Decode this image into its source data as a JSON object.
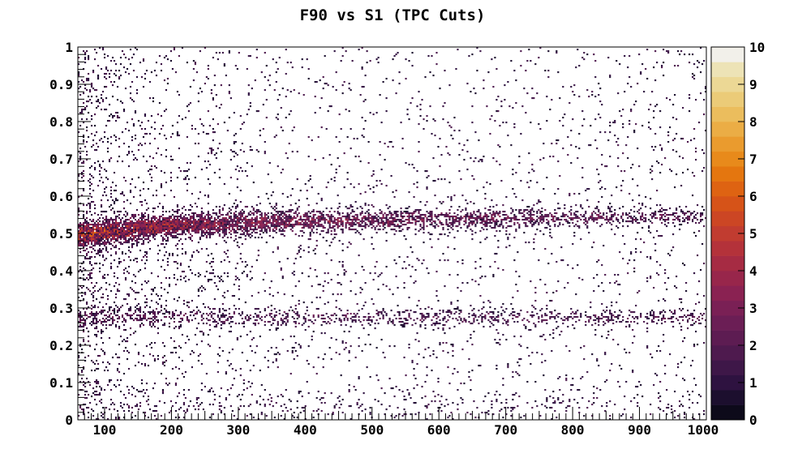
{
  "chart_data": {
    "type": "heatmap",
    "title": "F90 vs S1 (TPC Cuts)",
    "xlabel": "",
    "ylabel": "",
    "xlim": [
      60,
      1000
    ],
    "ylim": [
      0,
      1
    ],
    "x_ticks": [
      "100",
      "200",
      "300",
      "400",
      "500",
      "600",
      "700",
      "800",
      "900",
      "1000"
    ],
    "y_ticks": [
      "0",
      "0.1",
      "0.2",
      "0.3",
      "0.4",
      "0.5",
      "0.6",
      "0.7",
      "0.8",
      "0.9",
      "1"
    ],
    "colorbar": {
      "range": [
        0,
        10
      ],
      "ticks": [
        "0",
        "1",
        "2",
        "3",
        "4",
        "5",
        "6",
        "7",
        "8",
        "9",
        "10"
      ],
      "palette": [
        "#0d0a1a",
        "#1c0f2e",
        "#2e1240",
        "#3e1748",
        "#4e1a4e",
        "#5d1c52",
        "#6b1e55",
        "#7a2055",
        "#8a2252",
        "#98264b",
        "#a62b43",
        "#b4323a",
        "#c13c30",
        "#cc4624",
        "#d65318",
        "#de6312",
        "#e4760f",
        "#e88a1b",
        "#ea9b2e",
        "#ebad45",
        "#ebbd5d",
        "#ebcb78",
        "#ecd895",
        "#ede3b6",
        "#f2f0ea"
      ]
    },
    "bands": [
      {
        "name": "",
        "f90_center": 0.53,
        "note": "upper band, density peaks near S1 100-300 and thins toward 1000"
      },
      {
        "name": "",
        "f90_center": 0.275,
        "note": "lower band, moderate density across S1 range"
      }
    ],
    "grid": false,
    "legend": "colorbar-right"
  }
}
